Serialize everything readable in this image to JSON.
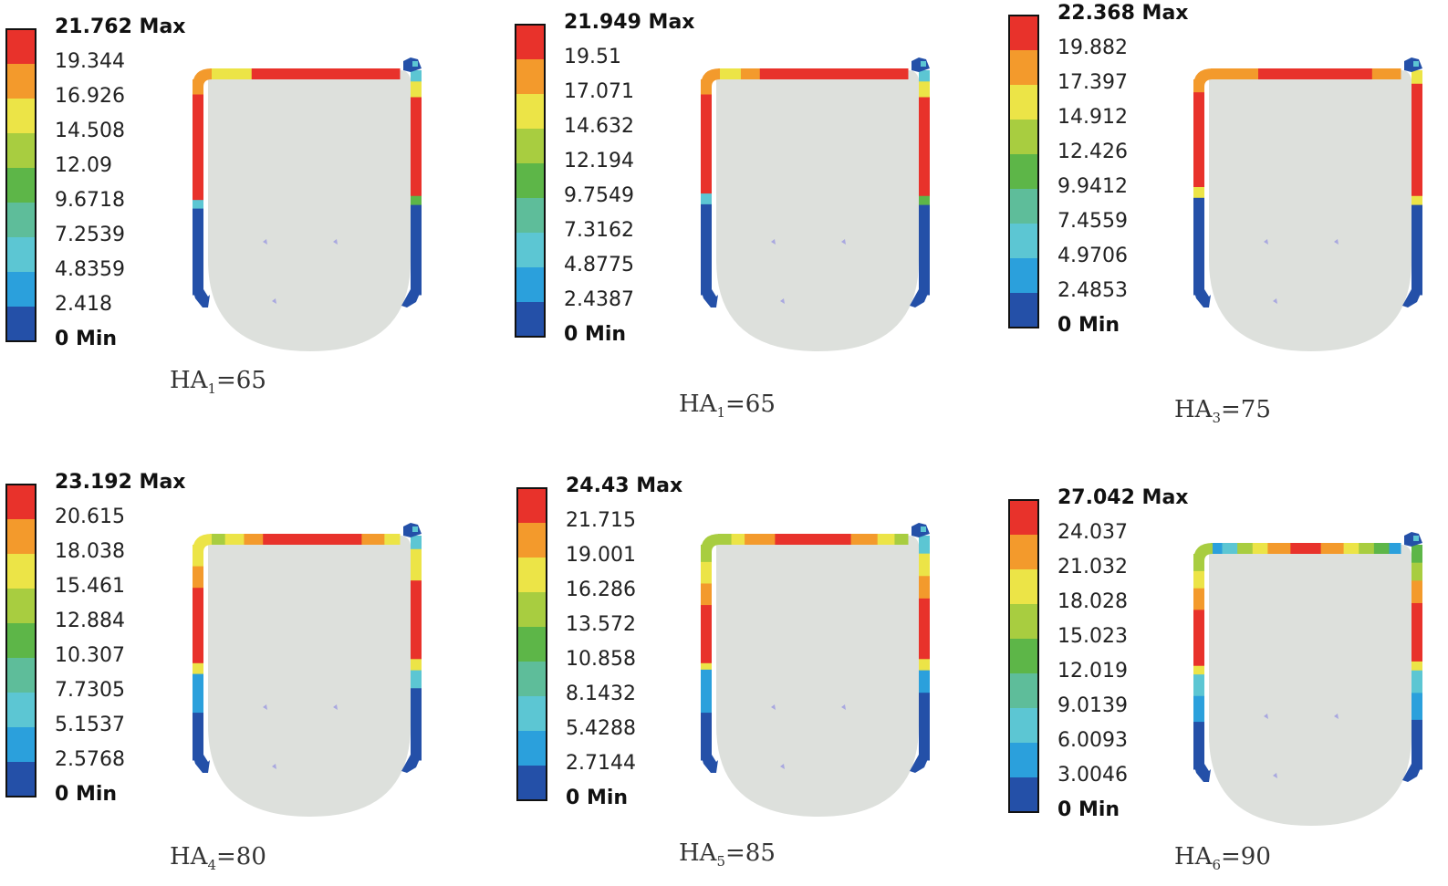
{
  "colors": [
    "#e8322b",
    "#f39a2c",
    "#ece447",
    "#a8cd40",
    "#5db648",
    "#5ebd9a",
    "#5cc6d3",
    "#2ba0dc",
    "#2450a8"
  ],
  "mesh_fill": "#dde0dc",
  "panels": [
    {
      "legend": [
        "21.762 Max",
        "19.344",
        "16.926",
        "14.508",
        "12.09",
        "9.6718",
        "7.2539",
        "4.8359",
        "2.418",
        "0 Min"
      ],
      "caption_base": "HA",
      "caption_sub": "1",
      "caption_rest": "=65"
    },
    {
      "legend": [
        "21.949 Max",
        "19.51",
        "17.071",
        "14.632",
        "12.194",
        "9.7549",
        "7.3162",
        "4.8775",
        "2.4387",
        "0 Min"
      ],
      "caption_base": "HA",
      "caption_sub": "1",
      "caption_rest": "=65"
    },
    {
      "legend": [
        "22.368 Max",
        "19.882",
        "17.397",
        "14.912",
        "12.426",
        "9.9412",
        "7.4559",
        "4.9706",
        "2.4853",
        "0 Min"
      ],
      "caption_base": "HA",
      "caption_sub": "3",
      "caption_rest": "=75"
    },
    {
      "legend": [
        "23.192 Max",
        "20.615",
        "18.038",
        "15.461",
        "12.884",
        "10.307",
        "7.7305",
        "5.1537",
        "2.5768",
        "0 Min"
      ],
      "caption_base": "HA",
      "caption_sub": "4",
      "caption_rest": "=80"
    },
    {
      "legend": [
        "24.43 Max",
        "21.715",
        "19.001",
        "16.286",
        "13.572",
        "10.858",
        "8.1432",
        "5.4288",
        "2.7144",
        "0 Min"
      ],
      "caption_base": "HA",
      "caption_sub": "5",
      "caption_rest": "=85"
    },
    {
      "legend": [
        "27.042 Max",
        "24.037",
        "21.032",
        "18.028",
        "15.023",
        "12.019",
        "9.0139",
        "6.0093",
        "3.0046",
        "0 Min"
      ],
      "caption_base": "HA",
      "caption_sub": "6",
      "caption_rest": "=90"
    }
  ]
}
